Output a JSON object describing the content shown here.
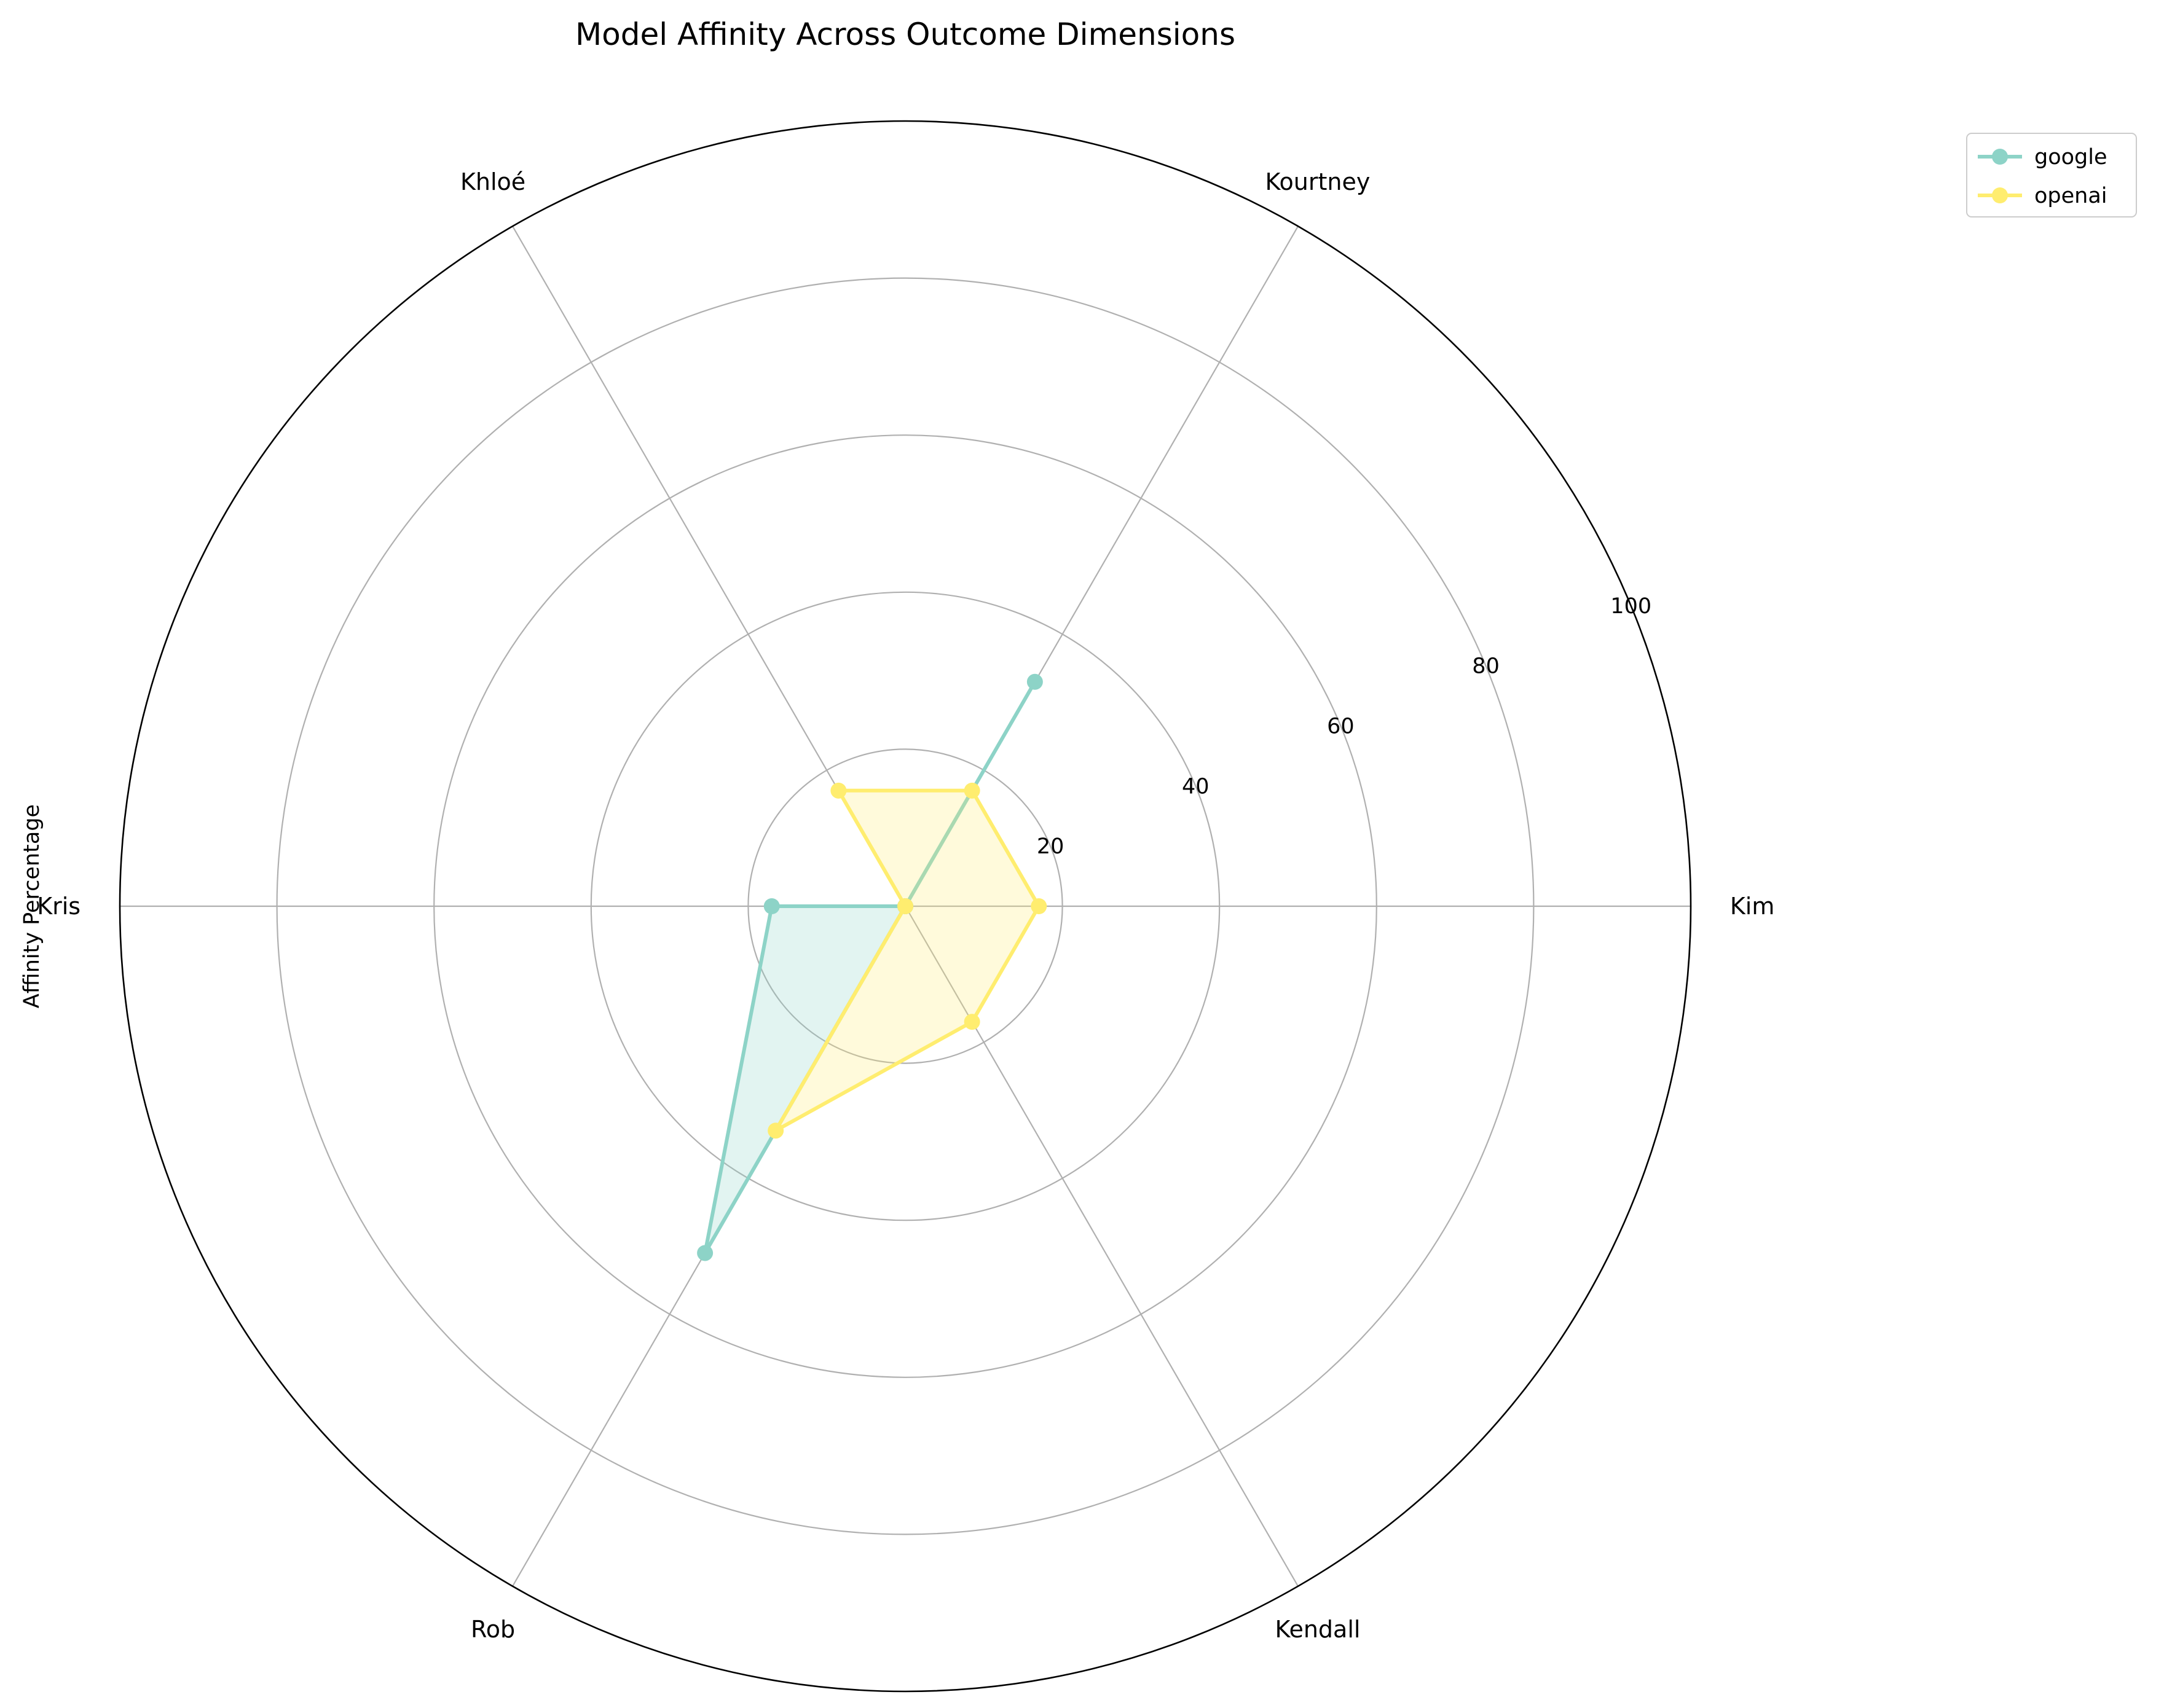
{
  "chart_data": {
    "type": "radar",
    "title": "Model Affinity Across Outcome Dimensions",
    "ylabel": "Affinity Percentage",
    "categories": [
      "Kim",
      "Kourtney",
      "Khloé",
      "Kris",
      "Rob",
      "Kendall"
    ],
    "rlim": [
      0,
      100
    ],
    "rticks": [
      20,
      40,
      60,
      80,
      100
    ],
    "rtick_labels": [
      "20",
      "40",
      "60",
      "80",
      "100"
    ],
    "series": [
      {
        "name": "google",
        "color": "#8dd3c7",
        "values": [
          0,
          33,
          0,
          17,
          51,
          0
        ]
      },
      {
        "name": "openai",
        "color": "#ffed6f",
        "values": [
          17,
          17,
          17,
          0,
          33,
          17
        ]
      }
    ],
    "grid": true,
    "legend": "top-right"
  }
}
